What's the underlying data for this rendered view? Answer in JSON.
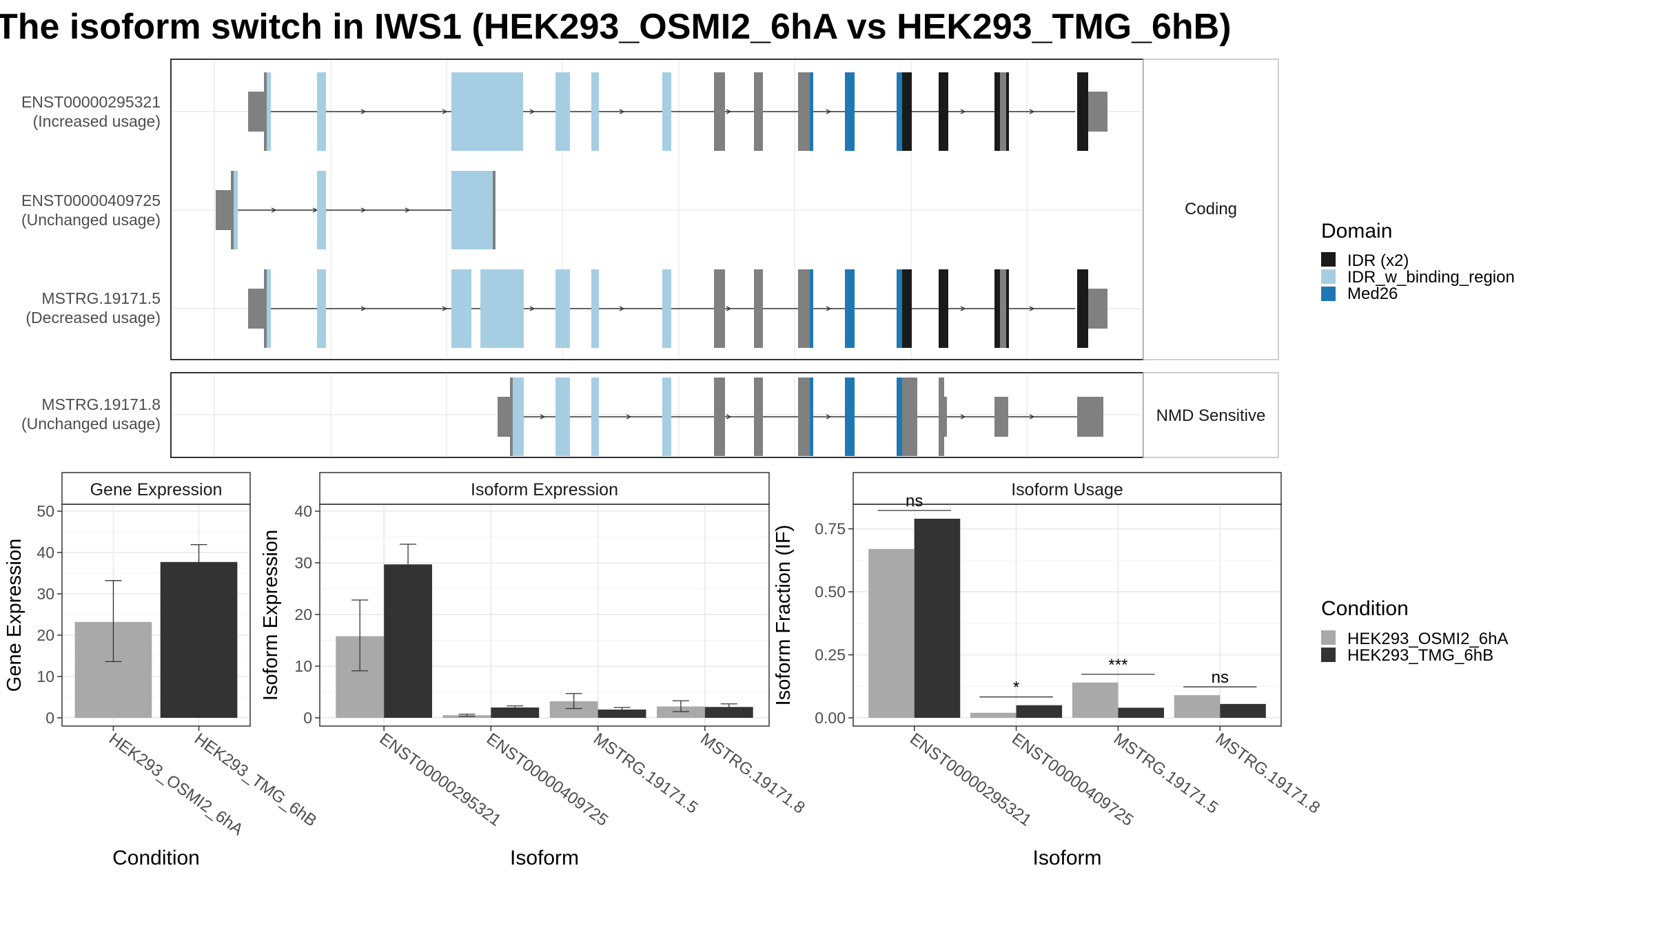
{
  "title": "The isoform switch in IWS1 (HEK293_OSMI2_6hA vs HEK293_TMG_6hB)",
  "colors": {
    "utr": "#808080",
    "exon_plain": "#808080",
    "idr_x2": "#1a1a1a",
    "idr_w_binding_region": "#a6cee3",
    "med26": "#1f78b4",
    "cond_a": "#a9a9a9",
    "cond_b": "#333333",
    "panel_border": "#333333",
    "strip_bg": "#ffffff",
    "grid": "#ebebeb"
  },
  "structure": {
    "coding_facet_label": "Coding",
    "nmd_facet_label": "NMD Sensitive",
    "isoforms": [
      {
        "id": "ENST00000295321",
        "usage": "(Increased usage)",
        "facet": "coding"
      },
      {
        "id": "ENST00000409725",
        "usage": "(Unchanged usage)",
        "facet": "coding"
      },
      {
        "id": "MSTRG.19171.5",
        "usage": "(Decreased usage)",
        "facet": "coding"
      },
      {
        "id": "MSTRG.19171.8",
        "usage": "(Unchanged usage)",
        "facet": "nmd"
      }
    ]
  },
  "legend_domain": {
    "title": "Domain",
    "items": [
      {
        "label": "IDR (x2)",
        "color": "#1a1a1a"
      },
      {
        "label": "IDR_w_binding_region",
        "color": "#a6cee3"
      },
      {
        "label": "Med26",
        "color": "#1f78b4"
      }
    ]
  },
  "legend_condition": {
    "title": "Condition",
    "items": [
      {
        "label": "HEK293_OSMI2_6hA",
        "color": "#a9a9a9"
      },
      {
        "label": "HEK293_TMG_6hB",
        "color": "#333333"
      }
    ]
  },
  "chart_data": [
    {
      "type": "bar",
      "title": "Gene Expression",
      "xlabel": "Condition",
      "ylabel": "Gene Expression",
      "ylim": [
        0,
        50
      ],
      "yticks": [
        0,
        10,
        20,
        30,
        40,
        50
      ],
      "categories": [
        "HEK293_OSMI2_6hA",
        "HEK293_TMG_6hB"
      ],
      "values": [
        23.2,
        37.7
      ],
      "error_low": [
        13.6,
        33.8
      ],
      "error_high": [
        33.2,
        41.9
      ]
    },
    {
      "type": "bar",
      "title": "Isoform Expression",
      "xlabel": "Isoform",
      "ylabel": "Isoform Expression",
      "ylim": [
        0,
        40
      ],
      "yticks": [
        0,
        10,
        20,
        30,
        40
      ],
      "categories": [
        "ENST00000295321",
        "ENST00000409725",
        "MSTRG.19171.5",
        "MSTRG.19171.8"
      ],
      "series": [
        {
          "name": "HEK293_OSMI2_6hA",
          "values": [
            15.8,
            0.5,
            3.2,
            2.2
          ],
          "error_low": [
            9.1,
            0.3,
            1.8,
            1.2
          ],
          "error_high": [
            22.8,
            0.7,
            4.7,
            3.3
          ]
        },
        {
          "name": "HEK293_TMG_6hB",
          "values": [
            29.7,
            2.0,
            1.6,
            2.1
          ],
          "error_low": [
            25.9,
            1.7,
            1.2,
            1.6
          ],
          "error_high": [
            33.6,
            2.3,
            2.0,
            2.7
          ]
        }
      ]
    },
    {
      "type": "bar",
      "title": "Isoform Usage",
      "xlabel": "Isoform",
      "ylabel": "Isoform Fraction (IF)",
      "ylim": [
        0,
        0.82
      ],
      "yticks": [
        "0.00",
        "0.25",
        "0.50",
        "0.75"
      ],
      "categories": [
        "ENST00000295321",
        "ENST00000409725",
        "MSTRG.19171.5",
        "MSTRG.19171.8"
      ],
      "series": [
        {
          "name": "HEK293_OSMI2_6hA",
          "values": [
            0.67,
            0.02,
            0.14,
            0.09
          ]
        },
        {
          "name": "HEK293_TMG_6hB",
          "values": [
            0.79,
            0.05,
            0.04,
            0.055
          ]
        }
      ],
      "significance": [
        "ns",
        "*",
        "***",
        "ns"
      ]
    }
  ]
}
